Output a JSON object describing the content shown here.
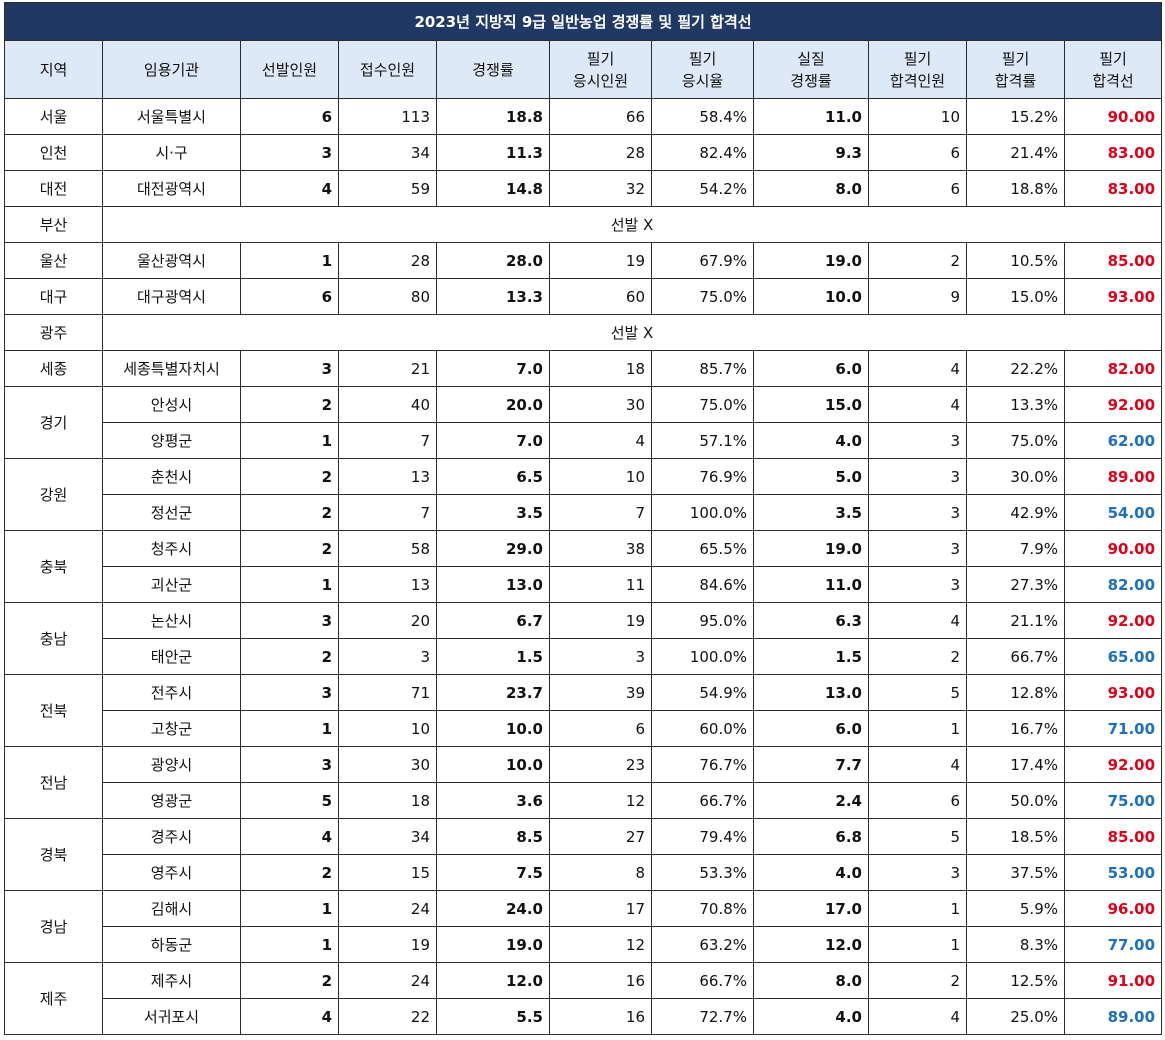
{
  "title": "2023년 지방직 9급 일반농업 경쟁률 및 필기 합격선",
  "headers": [
    [
      "지역"
    ],
    [
      "임용기관"
    ],
    [
      "선발인원"
    ],
    [
      "접수인원"
    ],
    [
      "경쟁률"
    ],
    [
      "필기",
      "응시인원"
    ],
    [
      "필기",
      "응시율"
    ],
    [
      "실질",
      "경쟁률"
    ],
    [
      "필기",
      "합격인원"
    ],
    [
      "필기",
      "합격률"
    ],
    [
      "필기",
      "합격선"
    ]
  ],
  "colors": {
    "title_bg": "#1f3864",
    "header_bg": "#dde9f6",
    "high_cutoff": "#e0001b",
    "low_cutoff": "#1c6fc2"
  },
  "regions": [
    {
      "region": "서울",
      "rows": [
        {
          "org": "서울특별시",
          "sel": "6",
          "apply": "113",
          "ratio": "18.8",
          "exam": "66",
          "examRate": "58.4%",
          "real": "11.0",
          "pass": "10",
          "passRate": "15.2%",
          "cutoff": "90.00",
          "tone": "red"
        }
      ]
    },
    {
      "region": "인천",
      "rows": [
        {
          "org": "시·구",
          "sel": "3",
          "apply": "34",
          "ratio": "11.3",
          "exam": "28",
          "examRate": "82.4%",
          "real": "9.3",
          "pass": "6",
          "passRate": "21.4%",
          "cutoff": "83.00",
          "tone": "red"
        }
      ]
    },
    {
      "region": "대전",
      "rows": [
        {
          "org": "대전광역시",
          "sel": "4",
          "apply": "59",
          "ratio": "14.8",
          "exam": "32",
          "examRate": "54.2%",
          "real": "8.0",
          "pass": "6",
          "passRate": "18.8%",
          "cutoff": "83.00",
          "tone": "red"
        }
      ]
    },
    {
      "region": "부산",
      "none": "선발 X"
    },
    {
      "region": "울산",
      "rows": [
        {
          "org": "울산광역시",
          "sel": "1",
          "apply": "28",
          "ratio": "28.0",
          "exam": "19",
          "examRate": "67.9%",
          "real": "19.0",
          "pass": "2",
          "passRate": "10.5%",
          "cutoff": "85.00",
          "tone": "red"
        }
      ]
    },
    {
      "region": "대구",
      "rows": [
        {
          "org": "대구광역시",
          "sel": "6",
          "apply": "80",
          "ratio": "13.3",
          "exam": "60",
          "examRate": "75.0%",
          "real": "10.0",
          "pass": "9",
          "passRate": "15.0%",
          "cutoff": "93.00",
          "tone": "red"
        }
      ]
    },
    {
      "region": "광주",
      "none": "선발 X"
    },
    {
      "region": "세종",
      "rows": [
        {
          "org": "세종특별자치시",
          "sel": "3",
          "apply": "21",
          "ratio": "7.0",
          "exam": "18",
          "examRate": "85.7%",
          "real": "6.0",
          "pass": "4",
          "passRate": "22.2%",
          "cutoff": "82.00",
          "tone": "red"
        }
      ]
    },
    {
      "region": "경기",
      "rows": [
        {
          "org": "안성시",
          "sel": "2",
          "apply": "40",
          "ratio": "20.0",
          "exam": "30",
          "examRate": "75.0%",
          "real": "15.0",
          "pass": "4",
          "passRate": "13.3%",
          "cutoff": "92.00",
          "tone": "red"
        },
        {
          "org": "양평군",
          "sel": "1",
          "apply": "7",
          "ratio": "7.0",
          "exam": "4",
          "examRate": "57.1%",
          "real": "4.0",
          "pass": "3",
          "passRate": "75.0%",
          "cutoff": "62.00",
          "tone": "blue"
        }
      ]
    },
    {
      "region": "강원",
      "rows": [
        {
          "org": "춘천시",
          "sel": "2",
          "apply": "13",
          "ratio": "6.5",
          "exam": "10",
          "examRate": "76.9%",
          "real": "5.0",
          "pass": "3",
          "passRate": "30.0%",
          "cutoff": "89.00",
          "tone": "red"
        },
        {
          "org": "정선군",
          "sel": "2",
          "apply": "7",
          "ratio": "3.5",
          "exam": "7",
          "examRate": "100.0%",
          "real": "3.5",
          "pass": "3",
          "passRate": "42.9%",
          "cutoff": "54.00",
          "tone": "blue"
        }
      ]
    },
    {
      "region": "충북",
      "rows": [
        {
          "org": "청주시",
          "sel": "2",
          "apply": "58",
          "ratio": "29.0",
          "exam": "38",
          "examRate": "65.5%",
          "real": "19.0",
          "pass": "3",
          "passRate": "7.9%",
          "cutoff": "90.00",
          "tone": "red"
        },
        {
          "org": "괴산군",
          "sel": "1",
          "apply": "13",
          "ratio": "13.0",
          "exam": "11",
          "examRate": "84.6%",
          "real": "11.0",
          "pass": "3",
          "passRate": "27.3%",
          "cutoff": "82.00",
          "tone": "blue"
        }
      ]
    },
    {
      "region": "충남",
      "rows": [
        {
          "org": "논산시",
          "sel": "3",
          "apply": "20",
          "ratio": "6.7",
          "exam": "19",
          "examRate": "95.0%",
          "real": "6.3",
          "pass": "4",
          "passRate": "21.1%",
          "cutoff": "92.00",
          "tone": "red"
        },
        {
          "org": "태안군",
          "sel": "2",
          "apply": "3",
          "ratio": "1.5",
          "exam": "3",
          "examRate": "100.0%",
          "real": "1.5",
          "pass": "2",
          "passRate": "66.7%",
          "cutoff": "65.00",
          "tone": "blue"
        }
      ]
    },
    {
      "region": "전북",
      "rows": [
        {
          "org": "전주시",
          "sel": "3",
          "apply": "71",
          "ratio": "23.7",
          "exam": "39",
          "examRate": "54.9%",
          "real": "13.0",
          "pass": "5",
          "passRate": "12.8%",
          "cutoff": "93.00",
          "tone": "red"
        },
        {
          "org": "고창군",
          "sel": "1",
          "apply": "10",
          "ratio": "10.0",
          "exam": "6",
          "examRate": "60.0%",
          "real": "6.0",
          "pass": "1",
          "passRate": "16.7%",
          "cutoff": "71.00",
          "tone": "blue"
        }
      ]
    },
    {
      "region": "전남",
      "rows": [
        {
          "org": "광양시",
          "sel": "3",
          "apply": "30",
          "ratio": "10.0",
          "exam": "23",
          "examRate": "76.7%",
          "real": "7.7",
          "pass": "4",
          "passRate": "17.4%",
          "cutoff": "92.00",
          "tone": "red"
        },
        {
          "org": "영광군",
          "sel": "5",
          "apply": "18",
          "ratio": "3.6",
          "exam": "12",
          "examRate": "66.7%",
          "real": "2.4",
          "pass": "6",
          "passRate": "50.0%",
          "cutoff": "75.00",
          "tone": "blue"
        }
      ]
    },
    {
      "region": "경북",
      "rows": [
        {
          "org": "경주시",
          "sel": "4",
          "apply": "34",
          "ratio": "8.5",
          "exam": "27",
          "examRate": "79.4%",
          "real": "6.8",
          "pass": "5",
          "passRate": "18.5%",
          "cutoff": "85.00",
          "tone": "red"
        },
        {
          "org": "영주시",
          "sel": "2",
          "apply": "15",
          "ratio": "7.5",
          "exam": "8",
          "examRate": "53.3%",
          "real": "4.0",
          "pass": "3",
          "passRate": "37.5%",
          "cutoff": "53.00",
          "tone": "blue"
        }
      ]
    },
    {
      "region": "경남",
      "rows": [
        {
          "org": "김해시",
          "sel": "1",
          "apply": "24",
          "ratio": "24.0",
          "exam": "17",
          "examRate": "70.8%",
          "real": "17.0",
          "pass": "1",
          "passRate": "5.9%",
          "cutoff": "96.00",
          "tone": "red"
        },
        {
          "org": "하동군",
          "sel": "1",
          "apply": "19",
          "ratio": "19.0",
          "exam": "12",
          "examRate": "63.2%",
          "real": "12.0",
          "pass": "1",
          "passRate": "8.3%",
          "cutoff": "77.00",
          "tone": "blue"
        }
      ]
    },
    {
      "region": "제주",
      "rows": [
        {
          "org": "제주시",
          "sel": "2",
          "apply": "24",
          "ratio": "12.0",
          "exam": "16",
          "examRate": "66.7%",
          "real": "8.0",
          "pass": "2",
          "passRate": "12.5%",
          "cutoff": "91.00",
          "tone": "red"
        },
        {
          "org": "서귀포시",
          "sel": "4",
          "apply": "22",
          "ratio": "5.5",
          "exam": "16",
          "examRate": "72.7%",
          "real": "4.0",
          "pass": "4",
          "passRate": "25.0%",
          "cutoff": "89.00",
          "tone": "blue"
        }
      ]
    }
  ]
}
